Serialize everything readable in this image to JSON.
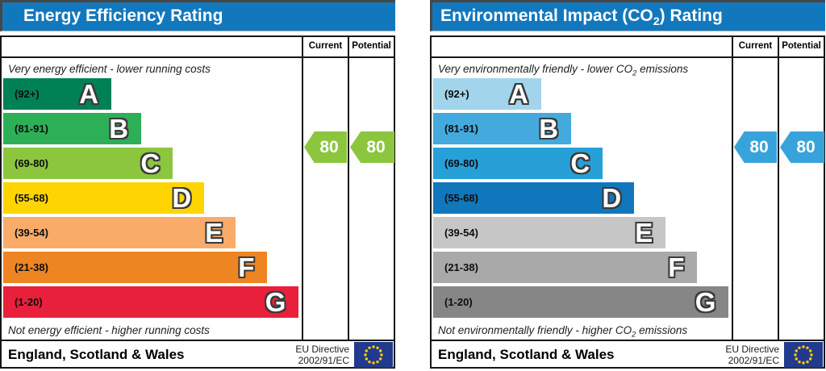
{
  "charts": {
    "left": {
      "title": "Energy Efficiency Rating",
      "header_bg": "#1278bd",
      "columns": {
        "current": "Current",
        "potential": "Potential"
      },
      "top_caption": "Very energy efficient - lower running costs",
      "bottom_caption": "Not energy efficient - higher running costs",
      "bands": [
        {
          "letter": "A",
          "range": "(92+)",
          "color": "#008155",
          "width_pct": 36
        },
        {
          "letter": "B",
          "range": "(81-91)",
          "color": "#2daf58",
          "width_pct": 46
        },
        {
          "letter": "C",
          "range": "(69-80)",
          "color": "#8cc63f",
          "width_pct": 56.5
        },
        {
          "letter": "D",
          "range": "(55-68)",
          "color": "#fed502",
          "width_pct": 67
        },
        {
          "letter": "E",
          "range": "(39-54)",
          "color": "#f9ab6a",
          "width_pct": 77.5
        },
        {
          "letter": "F",
          "range": "(21-38)",
          "color": "#ee8523",
          "width_pct": 88
        },
        {
          "letter": "G",
          "range": "(1-20)",
          "color": "#e8203b",
          "width_pct": 98.5
        }
      ],
      "current": {
        "value": "80",
        "color": "#8cc63f"
      },
      "potential": {
        "value": "80",
        "color": "#8cc63f"
      },
      "footer": {
        "region": "England, Scotland & Wales",
        "directive_line1": "EU Directive",
        "directive_line2": "2002/91/EC"
      }
    },
    "right": {
      "title": {
        "pre": "Environmental Impact (CO",
        "sub": "2",
        "post": ") Rating"
      },
      "header_bg": "#1278bd",
      "columns": {
        "current": "Current",
        "potential": "Potential"
      },
      "top_caption": {
        "pre": "Very environmentally friendly - lower CO",
        "sub": "2",
        "post": " emissions"
      },
      "bottom_caption": {
        "pre": "Not environmentally friendly - higher CO",
        "sub": "2",
        "post": " emissions"
      },
      "bands": [
        {
          "letter": "A",
          "range": "(92+)",
          "color": "#a2d5ec",
          "width_pct": 36
        },
        {
          "letter": "B",
          "range": "(81-91)",
          "color": "#44aadd",
          "width_pct": 46
        },
        {
          "letter": "C",
          "range": "(69-80)",
          "color": "#27a0d8",
          "width_pct": 56.5
        },
        {
          "letter": "D",
          "range": "(55-68)",
          "color": "#1177bd",
          "width_pct": 67
        },
        {
          "letter": "E",
          "range": "(39-54)",
          "color": "#c6c6c6",
          "width_pct": 77.5
        },
        {
          "letter": "F",
          "range": "(21-38)",
          "color": "#a9a9a9",
          "width_pct": 88
        },
        {
          "letter": "G",
          "range": "(1-20)",
          "color": "#868686",
          "width_pct": 98.5
        }
      ],
      "current": {
        "value": "80",
        "color": "#38a3db"
      },
      "potential": {
        "value": "80",
        "color": "#38a3db"
      },
      "footer": {
        "region": "England, Scotland & Wales",
        "directive_line1": "EU Directive",
        "directive_line2": "2002/91/EC"
      }
    }
  },
  "colors": {
    "header_blue": "#1278bd",
    "border_black": "#151515",
    "eu_flag_blue": "#223a8c",
    "eu_star_yellow": "#ffcc00"
  },
  "chart_data": [
    {
      "type": "bar",
      "title": "Energy Efficiency Rating",
      "categories": [
        "A (92+)",
        "B (81-91)",
        "C (69-80)",
        "D (55-68)",
        "E (39-54)",
        "F (21-38)",
        "G (1-20)"
      ],
      "values": [
        36,
        46,
        56.5,
        67,
        77.5,
        88,
        98.5
      ],
      "band_colors": [
        "#008155",
        "#2daf58",
        "#8cc63f",
        "#fed502",
        "#f9ab6a",
        "#ee8523",
        "#e8203b"
      ],
      "current": 80,
      "potential": 80,
      "current_band": "C",
      "potential_band": "C",
      "top_label": "Very energy efficient - lower running costs",
      "bottom_label": "Not energy efficient - higher running costs",
      "footer": "England, Scotland & Wales",
      "directive": "EU Directive 2002/91/EC"
    },
    {
      "type": "bar",
      "title": "Environmental Impact (CO2) Rating",
      "categories": [
        "A (92+)",
        "B (81-91)",
        "C (69-80)",
        "D (55-68)",
        "E (39-54)",
        "F (21-38)",
        "G (1-20)"
      ],
      "values": [
        36,
        46,
        56.5,
        67,
        77.5,
        88,
        98.5
      ],
      "band_colors": [
        "#a2d5ec",
        "#44aadd",
        "#27a0d8",
        "#1177bd",
        "#c6c6c6",
        "#a9a9a9",
        "#868686"
      ],
      "current": 80,
      "potential": 80,
      "current_band": "C",
      "potential_band": "C",
      "top_label": "Very environmentally friendly - lower CO2 emissions",
      "bottom_label": "Not environmentally friendly - higher CO2 emissions",
      "footer": "England, Scotland & Wales",
      "directive": "EU Directive 2002/91/EC"
    }
  ]
}
